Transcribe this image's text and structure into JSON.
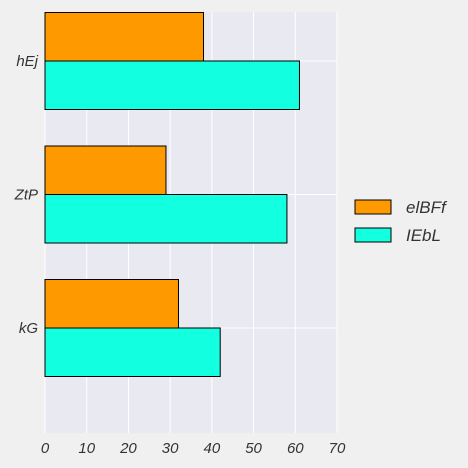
{
  "chart_data": {
    "type": "bar",
    "orientation": "horizontal",
    "categories": [
      "hEj",
      "ZtP",
      "kG"
    ],
    "series": [
      {
        "name": "elBFf",
        "values": [
          38,
          29,
          32
        ],
        "color": "#ff9900"
      },
      {
        "name": "IEbL",
        "values": [
          61,
          58,
          42
        ],
        "color": "#12ffe0"
      }
    ],
    "x_ticks": [
      0,
      10,
      20,
      30,
      40,
      50,
      60,
      70
    ],
    "xlim": [
      0,
      70
    ],
    "grid": true,
    "legend_position": "right",
    "colors": {
      "plot_background": "#e9e9f1",
      "page_background": "#f0f0f0",
      "grid": "#ffffff",
      "bar_edge": "#000000"
    }
  }
}
